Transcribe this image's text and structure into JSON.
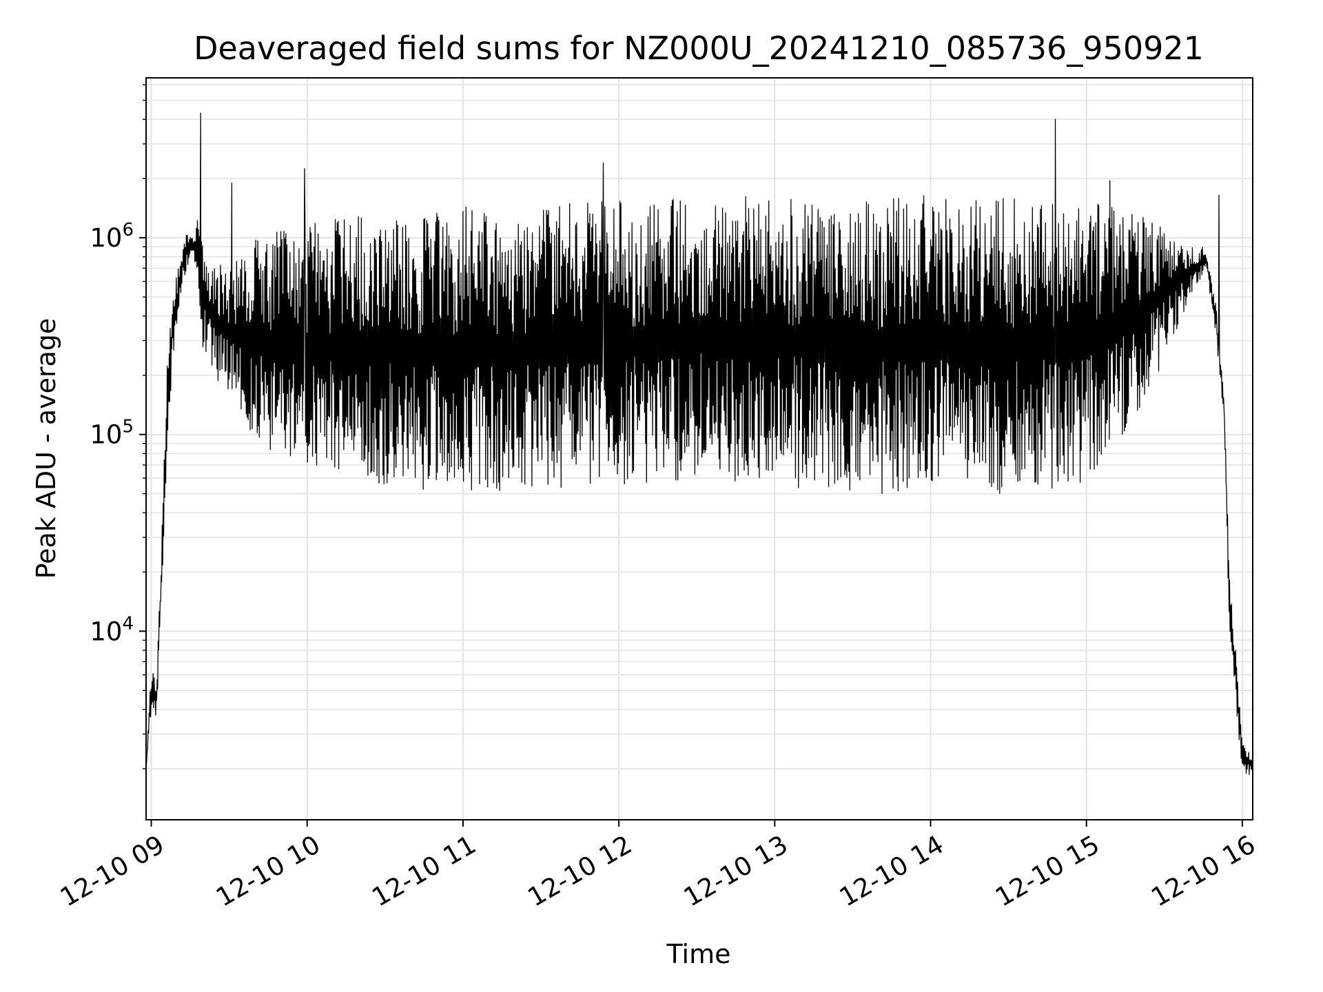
{
  "chart_data": {
    "type": "line",
    "title": "Deaveraged field sums for NZ000U_20241210_085736_950921",
    "xlabel": "Time",
    "ylabel": "Peak ADU - average",
    "yscale": "log",
    "grid": true,
    "line_color": "#000000",
    "grid_color": "#e3e3e3",
    "xlim": [
      "2024-12-10 08:58",
      "2024-12-10 16:04"
    ],
    "ylim": [
      1100,
      6500000
    ],
    "x_ticks": [
      {
        "value": "2024-12-10 09:00",
        "label": "12-10 09"
      },
      {
        "value": "2024-12-10 10:00",
        "label": "12-10 10"
      },
      {
        "value": "2024-12-10 11:00",
        "label": "12-10 11"
      },
      {
        "value": "2024-12-10 12:00",
        "label": "12-10 12"
      },
      {
        "value": "2024-12-10 13:00",
        "label": "12-10 13"
      },
      {
        "value": "2024-12-10 14:00",
        "label": "12-10 14"
      },
      {
        "value": "2024-12-10 15:00",
        "label": "12-10 15"
      },
      {
        "value": "2024-12-10 16:00",
        "label": "12-10 16"
      }
    ],
    "y_ticks": [
      {
        "value": 10000,
        "base": "10",
        "exp": "4"
      },
      {
        "value": 100000,
        "base": "10",
        "exp": "5"
      },
      {
        "value": 1000000,
        "base": "10",
        "exp": "6"
      }
    ],
    "series": [
      {
        "x": [
          "2024-12-10 08:58",
          "2024-12-10 09:00",
          "2024-12-10 09:02",
          "2024-12-10 09:04",
          "2024-12-10 09:06",
          "2024-12-10 09:08",
          "2024-12-10 09:10",
          "2024-12-10 09:12",
          "2024-12-10 09:14",
          "2024-12-10 09:16",
          "2024-12-10 09:18",
          "2024-12-10 09:20",
          "2024-12-10 09:24",
          "2024-12-10 09:30",
          "2024-12-10 09:40",
          "2024-12-10 10:00",
          "2024-12-10 10:30",
          "2024-12-10 11:00",
          "2024-12-10 11:30",
          "2024-12-10 12:00",
          "2024-12-10 12:30",
          "2024-12-10 13:00",
          "2024-12-10 13:30",
          "2024-12-10 14:00",
          "2024-12-10 14:30",
          "2024-12-10 15:00",
          "2024-12-10 15:20",
          "2024-12-10 15:40",
          "2024-12-10 15:46",
          "2024-12-10 15:50",
          "2024-12-10 15:53",
          "2024-12-10 15:55",
          "2024-12-10 15:57",
          "2024-12-10 16:00",
          "2024-12-10 16:04"
        ],
        "upper": [
          2000,
          6500,
          5500,
          30000,
          250000,
          500000,
          700000,
          900000,
          1100000,
          1000000,
          1300000,
          900000,
          800000,
          700000,
          1000000,
          1200000,
          1350000,
          1450000,
          1500000,
          1550000,
          1600000,
          1650000,
          1600000,
          1650000,
          1600000,
          1550000,
          1350000,
          900000,
          900000,
          450000,
          150000,
          20000,
          10000,
          3000,
          2200
        ],
        "lower": [
          2000,
          4000,
          3500,
          15000,
          80000,
          200000,
          350000,
          600000,
          700000,
          800000,
          600000,
          250000,
          200000,
          150000,
          90000,
          65000,
          55000,
          50000,
          50000,
          55000,
          60000,
          55000,
          50000,
          50000,
          50000,
          55000,
          120000,
          500000,
          700000,
          300000,
          120000,
          10000,
          5000,
          1800,
          1900
        ]
      }
    ],
    "spikes": [
      {
        "x": "2024-12-10 09:19",
        "y": 4300000
      },
      {
        "x": "2024-12-10 09:31",
        "y": 1900000
      },
      {
        "x": "2024-12-10 09:59",
        "y": 2250000
      },
      {
        "x": "2024-12-10 11:54",
        "y": 2400000
      },
      {
        "x": "2024-12-10 14:48",
        "y": 4000000
      },
      {
        "x": "2024-12-10 15:09",
        "y": 1950000
      },
      {
        "x": "2024-12-10 15:51",
        "y": 1650000
      }
    ]
  }
}
